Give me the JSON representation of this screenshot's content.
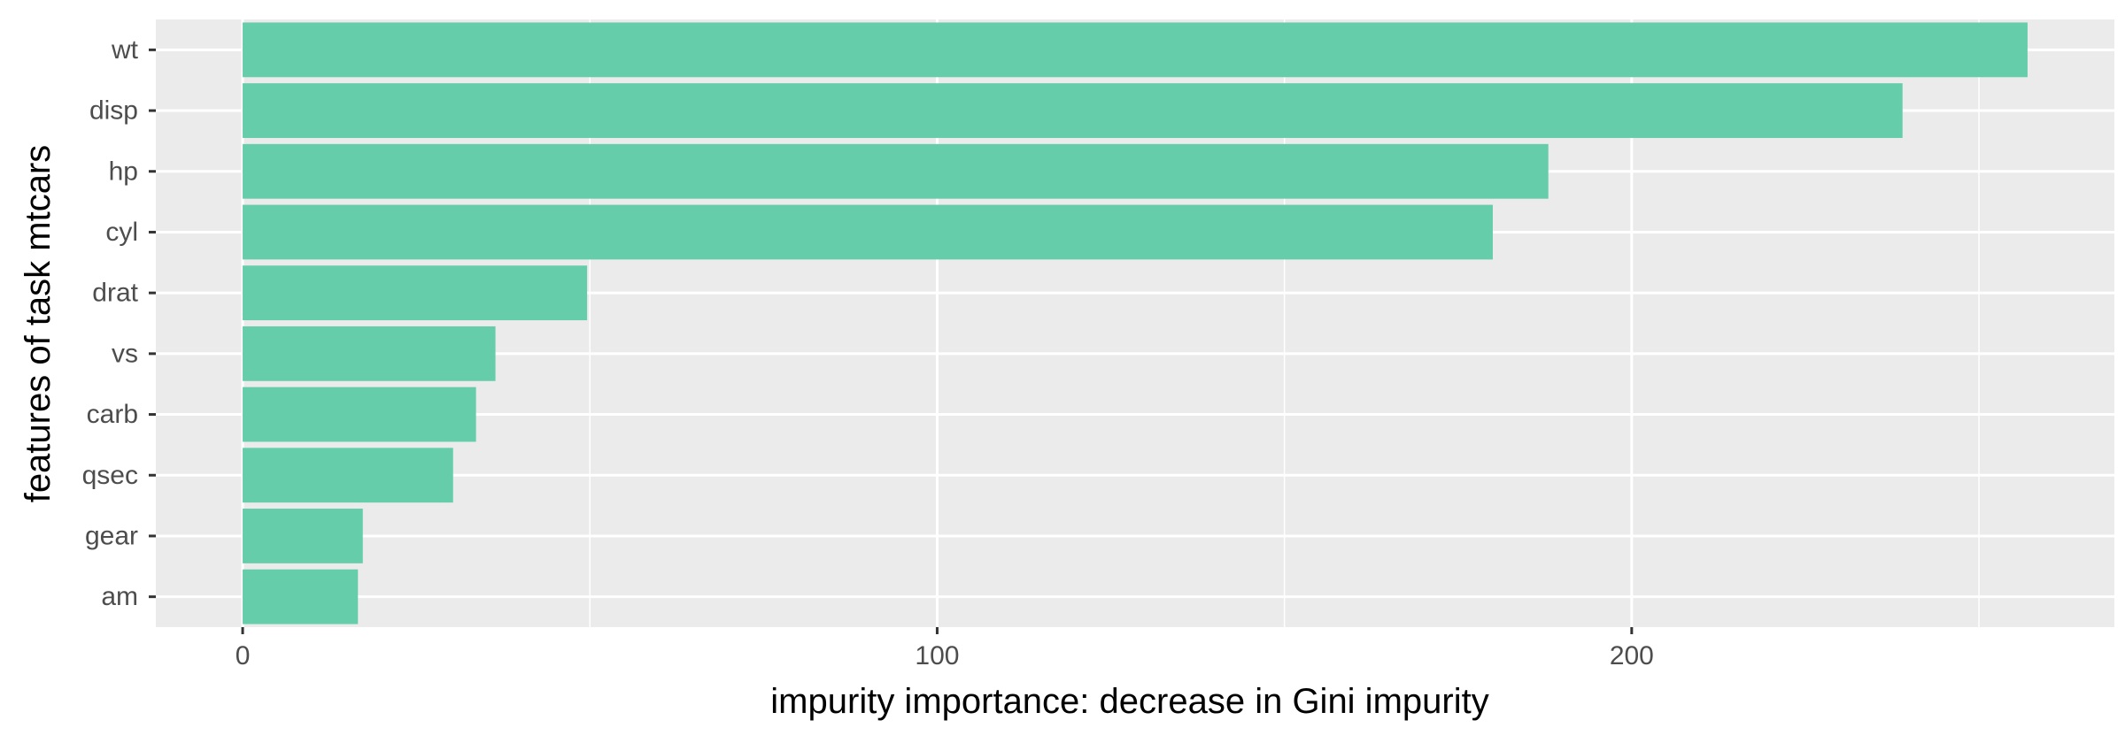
{
  "chart_data": {
    "type": "bar",
    "orientation": "horizontal",
    "categories": [
      "wt",
      "disp",
      "hp",
      "cyl",
      "drat",
      "vs",
      "carb",
      "qsec",
      "gear",
      "am"
    ],
    "values": [
      257,
      239,
      188,
      180,
      49.6,
      36.4,
      33.6,
      30.3,
      17.3,
      16.6
    ],
    "xlabel": "impurity importance: decrease in Gini impurity",
    "ylabel": "features of task mtcars",
    "x_ticks": [
      0,
      100,
      200
    ],
    "xlim": [
      -12.5,
      269.5
    ],
    "grid": true,
    "legend": "none",
    "colors": {
      "bar": "#66cdaa",
      "panel": "#ebebeb",
      "grid": "#ffffff"
    }
  }
}
